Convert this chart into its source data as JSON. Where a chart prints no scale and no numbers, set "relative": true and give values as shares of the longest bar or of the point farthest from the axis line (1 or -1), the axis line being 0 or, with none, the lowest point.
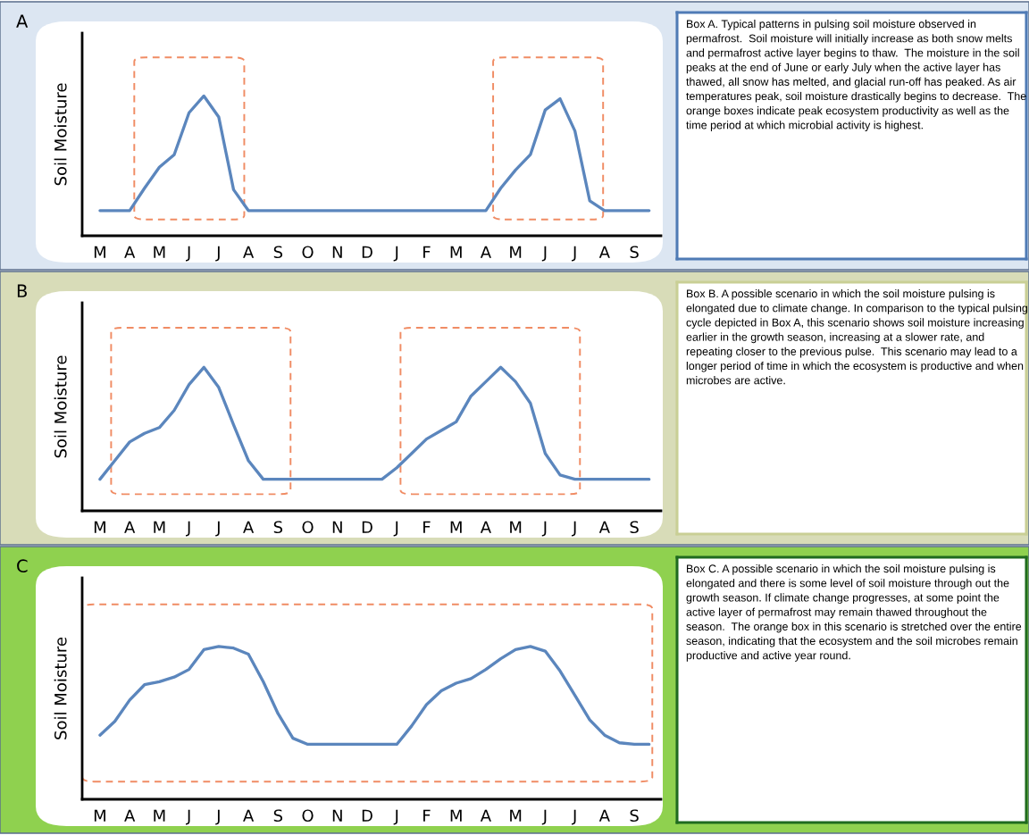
{
  "chart_data": [
    {
      "type": "line",
      "title": "A",
      "ylabel": "Soil Moisture",
      "relative": true,
      "categories": [
        "M",
        null,
        "A",
        null,
        "M",
        null,
        "J",
        null,
        "J",
        null,
        "A",
        null,
        "S",
        null,
        "O",
        null,
        "N",
        null,
        "D",
        null,
        "J",
        null,
        "F",
        null,
        "M",
        null,
        "A",
        null,
        "M",
        null,
        "J",
        null,
        "J",
        null,
        "A",
        null,
        "S",
        null
      ],
      "series": [
        {
          "color": "#5b86bd",
          "values": [
            0.18,
            0.18,
            0.18,
            0.34,
            0.49,
            0.58,
            0.88,
            1.0,
            0.85,
            0.33,
            0.18,
            0.18,
            0.18,
            0.18,
            0.18,
            0.18,
            0.18,
            0.18,
            0.18,
            0.18,
            0.18,
            0.18,
            0.18,
            0.18,
            0.18,
            0.18,
            0.18,
            0.34,
            0.47,
            0.58,
            0.9,
            0.98,
            0.75,
            0.25,
            0.18,
            0.18,
            0.18,
            0.18
          ]
        }
      ]
    },
    {
      "type": "other",
      "annotations": [
        "Box A. Typical patterns in pulsing soil moisture observed in permafrost.  Soil moisture will initially increase as both snow melts and permafrost active layer begins to thaw.  The moisture in the soil peaks at the end of June or early July when the active layer has thawed, all snow has melted, and glacial run-off has peaked. As air temperatures peak, soil moisture drastically begins to decrease.  The orange boxes indicate peak ecosystem productivity as well as the time period at which microbial activity is highest."
      ]
    },
    {
      "type": "line",
      "title": "B",
      "ylabel": "Soil Moisture",
      "relative": true,
      "categories": [
        "M",
        null,
        "A",
        null,
        "M",
        null,
        "J",
        null,
        "J",
        null,
        "A",
        null,
        "S",
        null,
        "O",
        null,
        "N",
        null,
        "D",
        null,
        "J",
        null,
        "F",
        null,
        "M",
        null,
        "A",
        null,
        "M",
        null,
        "J",
        null,
        "J",
        null,
        "A",
        null,
        "S",
        null
      ],
      "series": [
        {
          "color": "#5b86bd",
          "values": [
            0.22,
            0.35,
            0.48,
            0.54,
            0.58,
            0.7,
            0.88,
            1.0,
            0.86,
            0.6,
            0.35,
            0.22,
            0.22,
            0.22,
            0.22,
            0.22,
            0.22,
            0.22,
            0.22,
            0.22,
            0.3,
            0.4,
            0.5,
            0.56,
            0.62,
            0.8,
            0.9,
            1.0,
            0.9,
            0.75,
            0.4,
            0.25,
            0.22,
            0.22,
            0.22,
            0.22,
            0.22,
            0.22
          ]
        }
      ]
    },
    {
      "type": "other",
      "annotations": [
        "Box B. A possible scenario in which the soil moisture pulsing is elongated due to climate change. In comparison to the typical pulsing cycle depicted in Box A, this scenario shows soil moisture increasing earlier in the growth season, increasing at a slower rate, and repeating closer to the previous pulse.  This scenario may lead to a longer period of time in which the ecosystem is productive and when microbes are active."
      ]
    },
    {
      "type": "line",
      "title": "C",
      "ylabel": "Soil Moisture",
      "relative": true,
      "categories": [
        "M",
        null,
        "A",
        null,
        "M",
        null,
        "J",
        null,
        "J",
        null,
        "A",
        null,
        "S",
        null,
        "O",
        null,
        "N",
        null,
        "D",
        null,
        "J",
        null,
        "F",
        null,
        "M",
        null,
        "A",
        null,
        "M",
        null,
        "J",
        null,
        "J",
        null,
        "A",
        null,
        "S",
        null
      ],
      "series": [
        {
          "color": "#5b86bd",
          "values": [
            0.42,
            0.51,
            0.65,
            0.75,
            0.77,
            0.8,
            0.85,
            0.98,
            1.0,
            0.99,
            0.95,
            0.77,
            0.56,
            0.4,
            0.36,
            0.36,
            0.36,
            0.36,
            0.36,
            0.36,
            0.36,
            0.48,
            0.62,
            0.71,
            0.76,
            0.79,
            0.85,
            0.92,
            0.98,
            1.0,
            0.97,
            0.84,
            0.68,
            0.52,
            0.42,
            0.37,
            0.36,
            0.36
          ]
        }
      ]
    },
    {
      "type": "other",
      "annotations": [
        "Box C. A possible scenario in which the soil moisture pulsing is elongated and there is some level of soil moisture through out the growth season. If climate change progresses, at some point the active layer of permafrost may remain thawed throughout the season.  The orange box in this scenario is stretched over the entire season, indicating that the ecosystem and the soil microbes remain productive and active year round."
      ]
    }
  ]
}
